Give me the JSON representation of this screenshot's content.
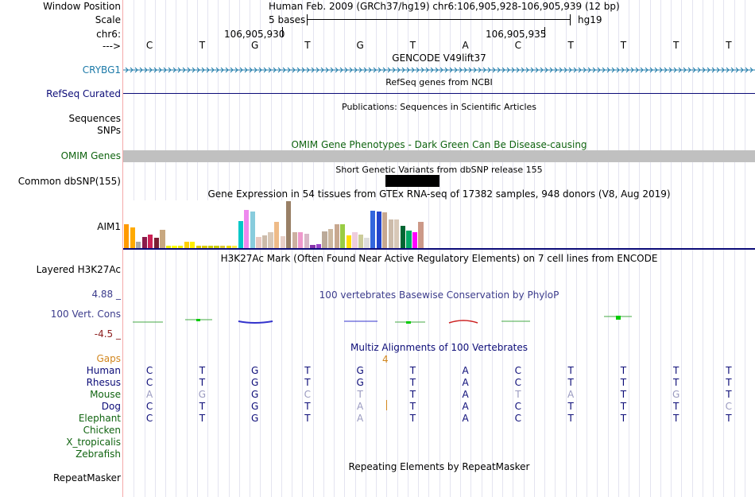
{
  "header": {
    "window_position_label": "Window Position",
    "scale_label": "Scale",
    "chrom_label": "chr6:",
    "strand_label": "--->",
    "position_title": "Human Feb. 2009 (GRCh37/hg19)   chr6:106,905,928-106,905,939 (12 bp)",
    "scale_text": "5 bases",
    "assembly": "hg19",
    "coord_left": "106,905,930",
    "coord_right": "106,905,935",
    "bases": [
      "C",
      "T",
      "G",
      "T",
      "G",
      "T",
      "A",
      "C",
      "T",
      "T",
      "T",
      "T"
    ]
  },
  "tracks": {
    "gencode": {
      "title": "GENCODE V49lift37",
      "label": "CRYBG1",
      "color": "#1B79A8"
    },
    "refseq": {
      "title": "RefSeq genes from NCBI",
      "label": "RefSeq Curated",
      "color": "#0C0C78"
    },
    "publications": {
      "title": "Publications: Sequences in Scientific Articles",
      "label_a": "Sequences",
      "label_b": "SNPs"
    },
    "omim": {
      "title": "OMIM Gene Phenotypes - Dark Green Can Be Disease-causing",
      "label": "OMIM Genes",
      "color": "#106410"
    },
    "dbsnp": {
      "title": "Short Genetic Variants from dbSNP release 155",
      "label": "Common dbSNP(155)"
    },
    "gtex": {
      "title": "Gene Expression in 54 tissues from GTEx RNA-seq of 17382 samples, 948 donors (V8, Aug 2019)",
      "label": "AIM1"
    },
    "h3k27ac": {
      "title": "H3K27Ac Mark (Often Found Near Active Regulatory Elements) on 7 cell lines from ENCODE",
      "label": "Layered H3K27Ac"
    },
    "conservation": {
      "title": "100 vertebrates Basewise Conservation by PhyloP",
      "label": "100 Vert. Cons",
      "max": "4.88 _",
      "min": "-4.5 _",
      "color": "#3C3C8C",
      "min_color": "#8C1E1E"
    },
    "multiz": {
      "title": "Multiz Alignments of 100 Vertebrates",
      "gaps_label": "Gaps",
      "gap_count": "4",
      "gaps_color": "#D2861E"
    },
    "repeatmasker": {
      "title": "Repeating Elements by RepeatMasker",
      "label": "RepeatMasker"
    }
  },
  "species": [
    {
      "name": "Human",
      "color": "#0C0C78",
      "bases": [
        "C",
        "T",
        "G",
        "T",
        "G",
        "T",
        "A",
        "C",
        "T",
        "T",
        "T",
        "T"
      ],
      "dim": [
        0,
        0,
        0,
        0,
        0,
        0,
        0,
        0,
        0,
        0,
        0,
        0
      ]
    },
    {
      "name": "Rhesus",
      "color": "#0C0C78",
      "bases": [
        "C",
        "T",
        "G",
        "T",
        "G",
        "T",
        "A",
        "C",
        "T",
        "T",
        "T",
        "T"
      ],
      "dim": [
        0,
        0,
        0,
        0,
        0,
        0,
        0,
        0,
        0,
        0,
        0,
        0
      ]
    },
    {
      "name": "Mouse",
      "color": "#106410",
      "bases": [
        "A",
        "G",
        "G",
        "C",
        "T",
        "T",
        "A",
        "T",
        "A",
        "T",
        "G",
        "T"
      ],
      "dim": [
        1,
        1,
        0,
        1,
        1,
        0,
        0,
        1,
        1,
        0,
        1,
        0
      ]
    },
    {
      "name": "Dog",
      "color": "#0C0C78",
      "bases": [
        "C",
        "T",
        "G",
        "T",
        "A",
        "T",
        "A",
        "C",
        "T",
        "T",
        "T",
        "C"
      ],
      "dim": [
        0,
        0,
        0,
        0,
        1,
        0,
        0,
        0,
        0,
        0,
        0,
        1
      ]
    },
    {
      "name": "Elephant",
      "color": "#106410",
      "bases": [
        "C",
        "T",
        "G",
        "T",
        "A",
        "T",
        "A",
        "C",
        "T",
        "T",
        "T",
        "T"
      ],
      "dim": [
        0,
        0,
        0,
        0,
        1,
        0,
        0,
        0,
        0,
        0,
        0,
        0
      ]
    },
    {
      "name": "Chicken",
      "color": "#106410",
      "bases": [],
      "dim": []
    },
    {
      "name": "X_tropicalis",
      "color": "#106410",
      "bases": [],
      "dim": []
    },
    {
      "name": "Zebrafish",
      "color": "#106410",
      "bases": [],
      "dim": []
    }
  ],
  "gtex_bars": {
    "values": [
      30,
      26,
      8,
      14,
      17,
      13,
      23,
      3,
      3,
      3,
      8,
      8,
      3,
      3,
      3,
      3,
      3,
      3,
      3,
      34,
      48,
      46,
      14,
      16,
      20,
      33,
      15,
      59,
      20,
      20,
      18,
      4,
      5,
      21,
      24,
      30,
      30,
      16,
      20,
      17,
      13,
      47,
      46,
      45,
      36,
      36,
      28,
      22,
      20,
      33
    ],
    "colors": [
      "#FF9900",
      "#FFAA00",
      "#AAAAAA",
      "#8B1A4A",
      "#CC2255",
      "#7A1E33",
      "#C8A880",
      "#EEEE00",
      "#FFFF00",
      "#EEEE00",
      "#FFD000",
      "#FFEE00",
      "#DDCC00",
      "#DDCC00",
      "#CCCC00",
      "#CCCC00",
      "#DDCC33",
      "#EEDD00",
      "#FFEE44",
      "#00C8C8",
      "#EE88EE",
      "#88CCDD",
      "#E8C8C0",
      "#CCBBAA",
      "#D8C8B8",
      "#EEBB88",
      "#E8D0C8",
      "#998066",
      "#CCB0A0",
      "#EE99CC",
      "#D8B8C8",
      "#8833AA",
      "#9944CC",
      "#BBAA99",
      "#CCB8A0",
      "#C8A890",
      "#99CC44",
      "#FFDD00",
      "#EECCDD",
      "#CCCC99",
      "#DDDDDD",
      "#3366DD",
      "#2244CC",
      "#C8A890",
      "#CCBBAA",
      "#D8C8B8",
      "#006633",
      "#00AA66",
      "#FF00FF",
      "#CC9988"
    ]
  }
}
